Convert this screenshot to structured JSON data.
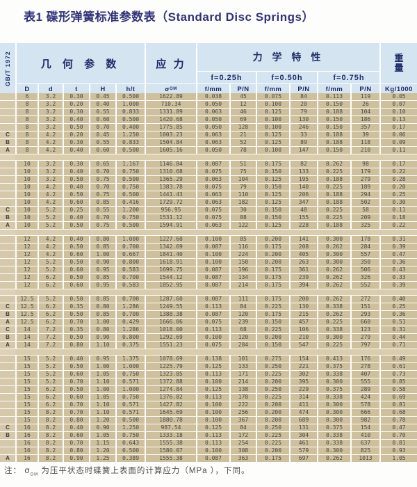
{
  "title": "表1 碟形弹簧标准参数表（Standard Disc Springs）",
  "header": {
    "gb_label": "GB/T 1972",
    "geometry_label": "几 何 参 数",
    "stress_label": "应 力",
    "mechanical_label": "力 学 特 性",
    "weight_top": "重",
    "weight_bottom": "量",
    "f_groups": [
      "f=0.25h",
      "f=0.50h",
      "f=0.75h"
    ],
    "sigma_main": "σ",
    "sigma_sub": "OM",
    "columns": [
      "D",
      "d",
      "t",
      "H",
      "h/t",
      "σOM",
      "f/mm",
      "P/N",
      "f/mm",
      "P/N",
      "f/mm",
      "P/N",
      "Kg/1000"
    ]
  },
  "colors": {
    "title": "#32327c",
    "header_bg": "#d5e4f1",
    "header_text": "#1c2b66",
    "body_cell": "#cec09c",
    "gap_band": "#d9cdae"
  },
  "table": {
    "groups": [
      {
        "rows": [
          [
            "",
            "6",
            "3.2",
            "0.30",
            "0.45",
            "0.500",
            "1622.89",
            "0.038",
            "45",
            "0.075",
            "84",
            "0.113",
            "119",
            "0.05"
          ],
          [
            "",
            "8",
            "3.2",
            "0.20",
            "0.40",
            "1.000",
            "710.34",
            "0.050",
            "12",
            "0.100",
            "20",
            "0.150",
            "26",
            "0.07"
          ],
          [
            "",
            "8",
            "3.2",
            "0.30",
            "0.55",
            "0.833",
            "1331.89",
            "0.063",
            "46",
            "0.125",
            "79",
            "0.188",
            "104",
            "0.10"
          ],
          [
            "",
            "8",
            "3.2",
            "0.40",
            "0.60",
            "0.500",
            "1420.68",
            "0.050",
            "69",
            "0.100",
            "130",
            "0.150",
            "186",
            "0.13"
          ],
          [
            "",
            "8",
            "3.2",
            "0.50",
            "0.70",
            "0.400",
            "1775.85",
            "0.050",
            "128",
            "0.100",
            "246",
            "0.150",
            "357",
            "0.17"
          ],
          [
            "C",
            "8",
            "4.2",
            "0.20",
            "0.45",
            "1.250",
            "1003.23",
            "0.063",
            "21",
            "0.125",
            "33",
            "0.188",
            "39",
            "0.06"
          ],
          [
            "B",
            "8",
            "4.2",
            "0.30",
            "0.55",
            "0.833",
            "1504.84",
            "0.063",
            "52",
            "0.125",
            "89",
            "0.188",
            "118",
            "0.09"
          ],
          [
            "A",
            "8",
            "4.2",
            "0.40",
            "0.60",
            "0.500",
            "1605.16",
            "0.050",
            "78",
            "0.100",
            "147",
            "0.150",
            "210",
            "0.11"
          ]
        ]
      },
      {
        "rows": [
          [
            "",
            "10",
            "3.2",
            "0.30",
            "0.65",
            "1.167",
            "1146.84",
            "0.087",
            "51",
            "0.175",
            "82",
            "0.262",
            "98",
            "0.17"
          ],
          [
            "",
            "10",
            "3.2",
            "0.40",
            "0.70",
            "0.750",
            "1310.68",
            "0.075",
            "75",
            "0.150",
            "133",
            "0.225",
            "179",
            "0.22"
          ],
          [
            "",
            "10",
            "3.2",
            "0.50",
            "0.75",
            "0.500",
            "1365.29",
            "0.063",
            "104",
            "0.125",
            "195",
            "0.188",
            "279",
            "0.28"
          ],
          [
            "",
            "10",
            "4.2",
            "0.40",
            "0.70",
            "0.750",
            "1383.78",
            "0.075",
            "79",
            "0.150",
            "140",
            "0.225",
            "189",
            "0.20"
          ],
          [
            "",
            "10",
            "4.2",
            "0.50",
            "0.75",
            "0.500",
            "1441.43",
            "0.063",
            "110",
            "0.125",
            "206",
            "0.188",
            "294",
            "0.25"
          ],
          [
            "",
            "10",
            "4.2",
            "0.60",
            "0.85",
            "0.416",
            "1729.72",
            "0.063",
            "182",
            "0.125",
            "347",
            "0.188",
            "502",
            "0.30"
          ],
          [
            "C",
            "10",
            "5.2",
            "0.25",
            "0.55",
            "1.200",
            "956.95",
            "0.075",
            "30",
            "0.150",
            "48",
            "0.225",
            "58",
            "0.11"
          ],
          [
            "B",
            "10",
            "5.2",
            "0.40",
            "0.70",
            "0.750",
            "1531.12",
            "0.075",
            "88",
            "0.150",
            "155",
            "0.225",
            "209",
            "0.18"
          ],
          [
            "A",
            "10",
            "5.2",
            "0.50",
            "0.75",
            "0.500",
            "1594.91",
            "0.063",
            "122",
            "0.125",
            "228",
            "0.188",
            "325",
            "0.22"
          ]
        ]
      },
      {
        "rows": [
          [
            "",
            "12",
            "4.2",
            "0.40",
            "0.80",
            "1.000",
            "1227.60",
            "0.100",
            "85",
            "0.200",
            "141",
            "0.300",
            "178",
            "0.31"
          ],
          [
            "",
            "12",
            "4.2",
            "0.50",
            "0.85",
            "0.700",
            "1342.69",
            "0.087",
            "116",
            "0.175",
            "208",
            "0.262",
            "284",
            "0.39"
          ],
          [
            "",
            "12",
            "4.2",
            "0.60",
            "1.00",
            "0.667",
            "1841.40",
            "0.100",
            "224",
            "0.200",
            "405",
            "0.300",
            "557",
            "0.47"
          ],
          [
            "",
            "12",
            "5.2",
            "0.50",
            "0.90",
            "0.800",
            "1618.91",
            "0.100",
            "150",
            "0.200",
            "263",
            "0.300",
            "350",
            "0.36"
          ],
          [
            "",
            "12",
            "5.2",
            "0.60",
            "0.95",
            "0.583",
            "1699.75",
            "0.087",
            "196",
            "0.175",
            "361",
            "0.262",
            "506",
            "0.43"
          ],
          [
            "",
            "12",
            "6.2",
            "0.50",
            "0.85",
            "0.700",
            "1544.12",
            "0.087",
            "134",
            "0.175",
            "239",
            "0.262",
            "326",
            "0.33"
          ],
          [
            "",
            "12",
            "6.2",
            "0.60",
            "0.95",
            "0.583",
            "1852.95",
            "0.087",
            "214",
            "0.175",
            "394",
            "0.262",
            "552",
            "0.39"
          ]
        ]
      },
      {
        "rows": [
          [
            "",
            "12.5",
            "5.2",
            "0.50",
            "0.85",
            "0.700",
            "1287.60",
            "0.087",
            "111",
            "0.175",
            "200",
            "0.262",
            "272",
            "0.40"
          ],
          [
            "C",
            "12.5",
            "6.2",
            "0.35",
            "0.80",
            "1.286",
            "1249.55",
            "0.113",
            "84",
            "0.225",
            "130",
            "0.338",
            "151",
            "0.25"
          ],
          [
            "B",
            "12.5",
            "6.2",
            "0.50",
            "0.85",
            "0.700",
            "1388.38",
            "0.087",
            "120",
            "0.175",
            "215",
            "0.262",
            "293",
            "0.36"
          ],
          [
            "A",
            "12.5",
            "6.2",
            "0.70",
            "1.00",
            "0.429",
            "1666.06",
            "0.075",
            "239",
            "0.150",
            "457",
            "0.225",
            "660",
            "0.51"
          ],
          [
            "C",
            "14",
            "7.2",
            "0.35",
            "0.80",
            "1.286",
            "1018.00",
            "0.113",
            "68",
            "0.225",
            "106",
            "0.338",
            "123",
            "0.31"
          ],
          [
            "B",
            "14",
            "7.2",
            "0.50",
            "0.90",
            "0.800",
            "1292.69",
            "0.100",
            "120",
            "0.200",
            "210",
            "0.300",
            "279",
            "0.44"
          ],
          [
            "A",
            "14",
            "7.2",
            "0.80",
            "1.10",
            "0.375",
            "1551.23",
            "0.075",
            "284",
            "0.150",
            "547",
            "0.225",
            "797",
            "0.71"
          ]
        ]
      },
      {
        "rows": [
          [
            "",
            "15",
            "5.2",
            "0.40",
            "0.95",
            "1.375",
            "1078.69",
            "0.138",
            "101",
            "0.275",
            "154",
            "0.413",
            "176",
            "0.49"
          ],
          [
            "",
            "15",
            "5.2",
            "0.50",
            "1.00",
            "1.000",
            "1225.79",
            "0.125",
            "133",
            "0.250",
            "221",
            "0.375",
            "278",
            "0.61"
          ],
          [
            "",
            "15",
            "5.2",
            "0.60",
            "1.05",
            "0.750",
            "1323.85",
            "0.113",
            "171",
            "0.225",
            "302",
            "0.338",
            "407",
            "0.73"
          ],
          [
            "",
            "15",
            "5.2",
            "0.70",
            "1.10",
            "0.571",
            "1372.88",
            "0.100",
            "214",
            "0.200",
            "395",
            "0.300",
            "555",
            "0.85"
          ],
          [
            "",
            "15",
            "6.2",
            "0.50",
            "1.00",
            "1.000",
            "1274.84",
            "0.125",
            "138",
            "0.250",
            "229",
            "0.375",
            "289",
            "0.58"
          ],
          [
            "",
            "15",
            "6.2",
            "0.60",
            "1.05",
            "0.750",
            "1376.82",
            "0.113",
            "178",
            "0.225",
            "314",
            "0.338",
            "424",
            "0.69"
          ],
          [
            "",
            "15",
            "6.2",
            "0.70",
            "1.10",
            "0.571",
            "1427.82",
            "0.100",
            "222",
            "0.200",
            "411",
            "0.300",
            "578",
            "0.81"
          ],
          [
            "",
            "15",
            "8.2",
            "0.70",
            "1.10",
            "0.571",
            "1645.69",
            "0.100",
            "256",
            "0.200",
            "474",
            "0.300",
            "666",
            "0.68"
          ],
          [
            "",
            "15",
            "8.2",
            "0.80",
            "1.20",
            "0.500",
            "1880.78",
            "0.100",
            "367",
            "0.200",
            "689",
            "0.300",
            "982",
            "0.78"
          ],
          [
            "C",
            "16",
            "8.2",
            "0.40",
            "0.90",
            "1.250",
            "987.54",
            "0.125",
            "84",
            "0.250",
            "131",
            "0.375",
            "154",
            "0.47"
          ],
          [
            "B",
            "16",
            "8.2",
            "0.60",
            "1.05",
            "0.750",
            "1333.18",
            "0.113",
            "172",
            "0.225",
            "304",
            "0.338",
            "410",
            "0.70"
          ],
          [
            "",
            "16",
            "8.2",
            "0.70",
            "1.15",
            "0.643",
            "1555.38",
            "0.113",
            "254",
            "0.225",
            "461",
            "0.338",
            "637",
            "0.81"
          ],
          [
            "",
            "16",
            "8.2",
            "0.80",
            "1.20",
            "0.500",
            "1580.07",
            "0.100",
            "308",
            "0.200",
            "579",
            "0.300",
            "825",
            "0.93"
          ],
          [
            "A",
            "16",
            "8.2",
            "0.90",
            "1.25",
            "0.389",
            "1555.38",
            "0.087",
            "363",
            "0.175",
            "697",
            "0.262",
            "1013",
            "1.05"
          ]
        ]
      }
    ]
  },
  "note": {
    "prefix": "注：",
    "sigma": "σ",
    "sigma_sub": "OM",
    "text": "为压平状态时碟簧上表面的计算应力（MPa ），下同。"
  }
}
